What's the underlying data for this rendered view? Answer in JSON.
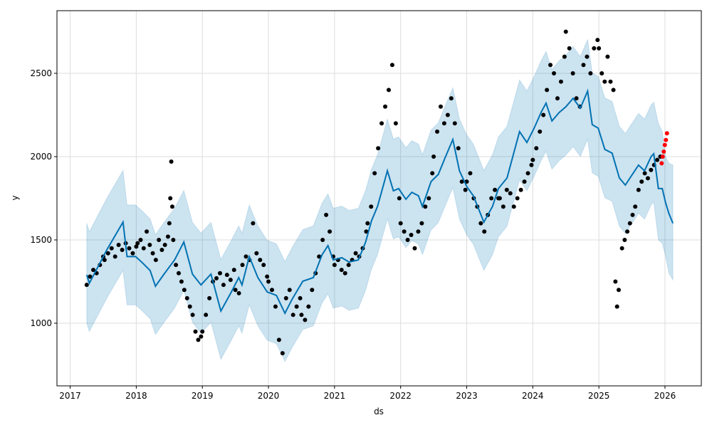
{
  "chart_data": {
    "type": "line",
    "title": "",
    "xlabel": "ds",
    "ylabel": "y",
    "xlim": [
      2016.8,
      2026.55
    ],
    "ylim": [
      624,
      2876
    ],
    "grid": true,
    "x_ticks": [
      2017,
      2018,
      2019,
      2020,
      2021,
      2022,
      2023,
      2024,
      2025,
      2026
    ],
    "x_tick_labels": [
      "2017",
      "2018",
      "2019",
      "2020",
      "2021",
      "2022",
      "2023",
      "2024",
      "2025",
      "2026"
    ],
    "y_ticks": [
      1000,
      1500,
      2000,
      2500
    ],
    "y_tick_labels": [
      "1000",
      "1500",
      "2000",
      "2500"
    ],
    "colors": {
      "forecast": "#0072B2",
      "band": "#0072B2",
      "observed": "#000000",
      "recent": "#ff0000",
      "grid": "#dddddd"
    },
    "forecast": {
      "x": [
        2017.25,
        2017.29,
        2017.56,
        2017.8,
        2017.86,
        2017.99,
        2018.1,
        2018.21,
        2018.29,
        2018.42,
        2018.58,
        2018.72,
        2018.85,
        2018.98,
        2019.13,
        2019.28,
        2019.44,
        2019.55,
        2019.6,
        2019.71,
        2019.84,
        2019.98,
        2020.12,
        2020.25,
        2020.36,
        2020.52,
        2020.68,
        2020.81,
        2020.9,
        2020.98,
        2021.11,
        2021.22,
        2021.36,
        2021.47,
        2021.56,
        2021.65,
        2021.8,
        2021.89,
        2021.97,
        2022.08,
        2022.17,
        2022.27,
        2022.33,
        2022.46,
        2022.57,
        2022.67,
        2022.79,
        2022.89,
        2023.0,
        2023.1,
        2023.26,
        2023.39,
        2023.48,
        2023.61,
        2023.8,
        2023.91,
        2024.02,
        2024.13,
        2024.2,
        2024.29,
        2024.4,
        2024.5,
        2024.61,
        2024.72,
        2024.83,
        2024.9,
        2024.99,
        2025.09,
        2025.2,
        2025.31,
        2025.4,
        2025.47,
        2025.6,
        2025.69,
        2025.79,
        2025.83,
        2025.9,
        2025.96,
        2026.01,
        2026.06,
        2026.12
      ],
      "yhat": [
        1290,
        1240,
        1444,
        1607,
        1400,
        1400,
        1360,
        1316,
        1222,
        1295,
        1380,
        1487,
        1295,
        1230,
        1295,
        1073,
        1188,
        1274,
        1230,
        1400,
        1274,
        1188,
        1167,
        1060,
        1145,
        1252,
        1274,
        1410,
        1466,
        1380,
        1393,
        1367,
        1380,
        1487,
        1615,
        1701,
        1915,
        1795,
        1808,
        1744,
        1786,
        1765,
        1701,
        1850,
        1893,
        1991,
        2103,
        1915,
        1821,
        1765,
        1607,
        1701,
        1808,
        1872,
        2150,
        2085,
        2171,
        2269,
        2321,
        2214,
        2265,
        2299,
        2350,
        2291,
        2393,
        2192,
        2171,
        2043,
        2021,
        1872,
        1829,
        1872,
        1949,
        1915,
        2000,
        2017,
        1808,
        1808,
        1722,
        1658,
        1600
      ],
      "upper": [
        1600,
        1550,
        1754,
        1917,
        1710,
        1710,
        1670,
        1626,
        1532,
        1605,
        1690,
        1797,
        1605,
        1540,
        1605,
        1383,
        1498,
        1584,
        1540,
        1710,
        1584,
        1498,
        1477,
        1370,
        1455,
        1562,
        1584,
        1720,
        1776,
        1690,
        1703,
        1677,
        1690,
        1797,
        1925,
        2011,
        2225,
        2105,
        2118,
        2054,
        2096,
        2075,
        2011,
        2160,
        2203,
        2301,
        2413,
        2225,
        2131,
        2075,
        1917,
        2011,
        2118,
        2182,
        2460,
        2395,
        2481,
        2579,
        2631,
        2524,
        2575,
        2609,
        2660,
        2601,
        2703,
        2502,
        2481,
        2353,
        2331,
        2182,
        2139,
        2182,
        2259,
        2225,
        2310,
        2327,
        2200,
        2150,
        2000,
        1960,
        1950
      ],
      "lower": [
        1000,
        950,
        1154,
        1317,
        1110,
        1110,
        1070,
        1026,
        932,
        1005,
        1090,
        1197,
        1005,
        940,
        1005,
        783,
        898,
        984,
        940,
        1110,
        984,
        898,
        877,
        770,
        855,
        962,
        984,
        1120,
        1176,
        1090,
        1103,
        1077,
        1090,
        1197,
        1325,
        1411,
        1625,
        1505,
        1518,
        1454,
        1496,
        1475,
        1411,
        1560,
        1603,
        1701,
        1813,
        1625,
        1531,
        1475,
        1317,
        1411,
        1518,
        1582,
        1860,
        1795,
        1881,
        1979,
        2031,
        1924,
        1975,
        2009,
        2060,
        2001,
        2103,
        1902,
        1881,
        1753,
        1731,
        1582,
        1539,
        1582,
        1659,
        1625,
        1710,
        1727,
        1500,
        1480,
        1400,
        1300,
        1260
      ]
    },
    "observed": [
      {
        "t0": 2017.25,
        "t1": 2017.5,
        "v": [
          1230,
          1280,
          1320,
          1300,
          1350,
          1400
        ]
      },
      {
        "t0": 2017.52,
        "t1": 2018.0,
        "v": [
          1380,
          1420,
          1450,
          1400,
          1470,
          1440,
          1480,
          1450,
          1420,
          1460
        ]
      },
      {
        "t0": 2018.02,
        "t1": 2018.48,
        "v": [
          1480,
          1500,
          1450,
          1550,
          1470,
          1420,
          1380,
          1500,
          1440,
          1470,
          1520
        ]
      },
      {
        "t0": 2018.5,
        "t1": 2018.56,
        "v": [
          1600,
          1750,
          1970,
          1700,
          1500
        ]
      },
      {
        "t0": 2018.6,
        "t1": 2018.98,
        "v": [
          1350,
          1300,
          1250,
          1200,
          1150,
          1100,
          1050,
          950,
          900,
          920
        ]
      },
      {
        "t0": 2019.0,
        "t1": 2019.48,
        "v": [
          950,
          1050,
          1150,
          1250,
          1270,
          1300,
          1230,
          1290,
          1260,
          1320
        ]
      },
      {
        "t0": 2019.5,
        "t1": 2019.98,
        "v": [
          1200,
          1180,
          1350,
          1400,
          1380,
          1600,
          1420,
          1380,
          1350,
          1280
        ]
      },
      {
        "t0": 2020.0,
        "t1": 2020.48,
        "v": [
          1250,
          1200,
          1100,
          900,
          820,
          1150,
          1200,
          1050,
          1100,
          1150
        ]
      },
      {
        "t0": 2020.5,
        "t1": 2020.98,
        "v": [
          1050,
          1020,
          1100,
          1200,
          1300,
          1400,
          1500,
          1650,
          1550,
          1400
        ]
      },
      {
        "t0": 2021.0,
        "t1": 2021.48,
        "v": [
          1350,
          1380,
          1320,
          1300,
          1350,
          1380,
          1420,
          1400,
          1450,
          1550
        ]
      },
      {
        "t0": 2021.5,
        "t1": 2021.98,
        "v": [
          1600,
          1700,
          1900,
          2050,
          2200,
          2300,
          2400,
          2550,
          2200,
          1750
        ]
      },
      {
        "t0": 2022.0,
        "t1": 2022.48,
        "v": [
          1600,
          1550,
          1500,
          1530,
          1450,
          1550,
          1600,
          1700,
          1750,
          1900
        ]
      },
      {
        "t0": 2022.5,
        "t1": 2022.98,
        "v": [
          2000,
          2150,
          2300,
          2200,
          2250,
          2350,
          2200,
          2050,
          1850,
          1800
        ]
      },
      {
        "t0": 2023.0,
        "t1": 2023.48,
        "v": [
          1850,
          1900,
          1750,
          1700,
          1600,
          1550,
          1650,
          1750,
          1800,
          1750
        ]
      },
      {
        "t0": 2023.5,
        "t1": 2023.98,
        "v": [
          1750,
          1700,
          1800,
          1780,
          1700,
          1750,
          1800,
          1850,
          1900,
          1950
        ]
      },
      {
        "t0": 2024.0,
        "t1": 2024.48,
        "v": [
          1980,
          2050,
          2150,
          2250,
          2400,
          2550,
          2500,
          2350,
          2450,
          2600
        ]
      },
      {
        "t0": 2024.5,
        "t1": 2024.98,
        "v": [
          2750,
          2650,
          2500,
          2350,
          2300,
          2550,
          2600,
          2500,
          2650,
          2700
        ]
      },
      {
        "t0": 2025.0,
        "t1": 2025.22,
        "v": [
          2650,
          2500,
          2450,
          2600,
          2450,
          2400
        ]
      },
      {
        "t0": 2025.25,
        "t1": 2025.3,
        "v": [
          1250,
          1100,
          1200
        ]
      },
      {
        "t0": 2025.35,
        "t1": 2025.55,
        "v": [
          1450,
          1500,
          1550,
          1600,
          1650,
          1700
        ]
      },
      {
        "t0": 2025.6,
        "t1": 2025.93,
        "v": [
          1800,
          1850,
          1900,
          1870,
          1920,
          1950,
          1980,
          2000
        ]
      }
    ],
    "recent_observed": {
      "t0": 2025.95,
      "t1": 2026.03,
      "v": [
        1960,
        2000,
        2030,
        2070,
        2100,
        2140
      ]
    }
  }
}
